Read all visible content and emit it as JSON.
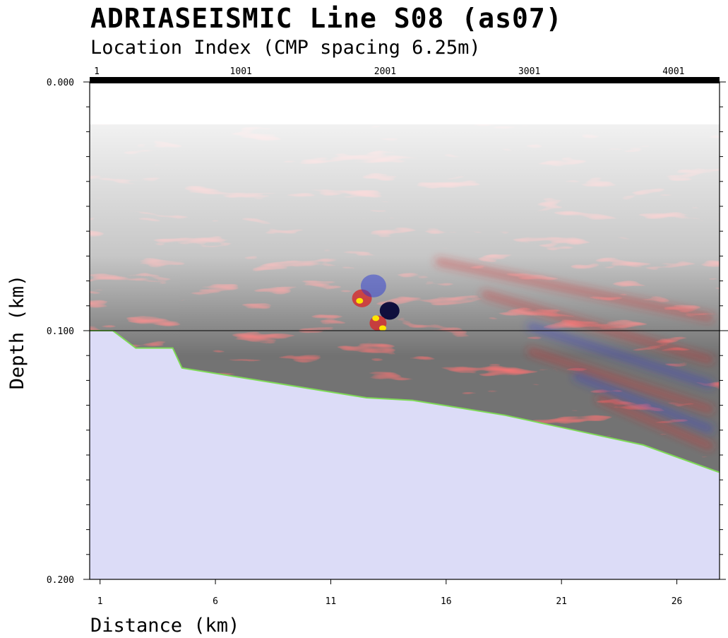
{
  "chart_data": {
    "type": "heatmap",
    "title": "ADRIASEISMIC Line S08 (as07)",
    "top_axis": {
      "label": "Location Index (CMP spacing 6.25m)",
      "ticks": [
        1,
        1001,
        2001,
        3001,
        4001
      ]
    },
    "xlabel": "Distance (km)",
    "ylabel": "Depth (km)",
    "xticks": [
      1,
      6,
      11,
      16,
      21,
      26
    ],
    "yticks": [
      "0.000",
      "0.100",
      "0.200"
    ],
    "xlim": [
      0,
      27.3
    ],
    "ylim": [
      0,
      0.2
    ],
    "reference_line_depth": 0.1,
    "seafloor_profile": [
      {
        "x": 0,
        "depth": 0.1
      },
      {
        "x": 1,
        "depth": 0.1
      },
      {
        "x": 2,
        "depth": 0.107
      },
      {
        "x": 3.6,
        "depth": 0.107
      },
      {
        "x": 4,
        "depth": 0.115
      },
      {
        "x": 6,
        "depth": 0.118
      },
      {
        "x": 8,
        "depth": 0.121
      },
      {
        "x": 10,
        "depth": 0.124
      },
      {
        "x": 12,
        "depth": 0.127
      },
      {
        "x": 14,
        "depth": 0.128
      },
      {
        "x": 16,
        "depth": 0.131
      },
      {
        "x": 18,
        "depth": 0.134
      },
      {
        "x": 20,
        "depth": 0.138
      },
      {
        "x": 22,
        "depth": 0.142
      },
      {
        "x": 24,
        "depth": 0.146
      },
      {
        "x": 25.5,
        "depth": 0.151
      },
      {
        "x": 27.3,
        "depth": 0.157
      }
    ],
    "colormap": {
      "positive": "#d42a2a",
      "negative": "#2a3ad4",
      "peak": "#ffe600",
      "trough": "#000033"
    },
    "colors": {
      "seafloor_fill": "#dcdcf7",
      "seafloor_line": "#7ed957",
      "top_bar": "#000000",
      "reference_line": "#000000"
    }
  }
}
